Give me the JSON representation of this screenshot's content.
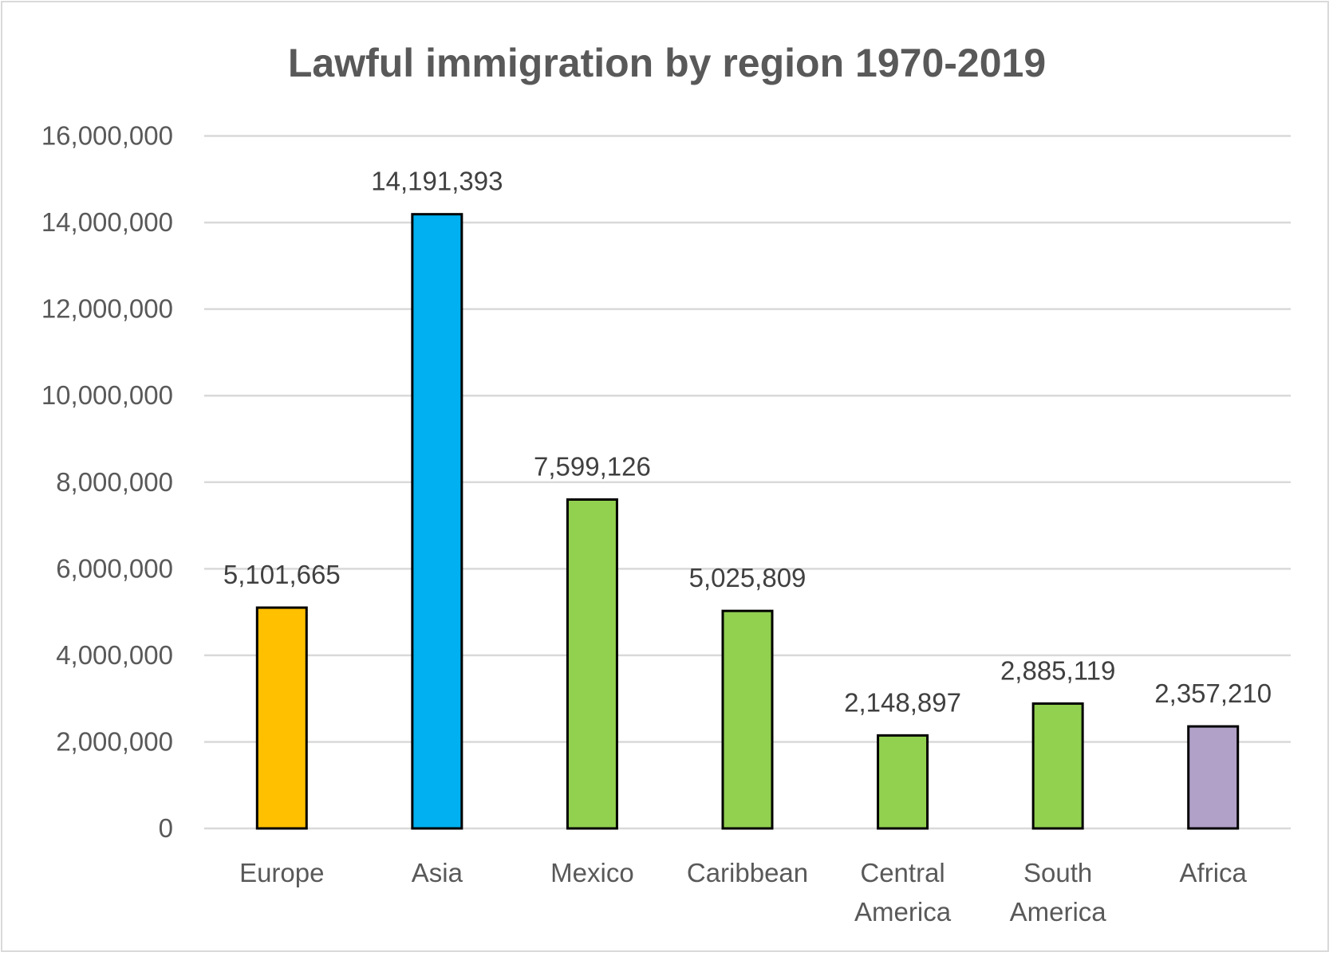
{
  "chart_data": {
    "type": "bar",
    "title": "Lawful immigration by region 1970-2019",
    "xlabel": "",
    "ylabel": "",
    "ylim": [
      0,
      16000000
    ],
    "yticks": [
      "0",
      "2,000,000",
      "4,000,000",
      "6,000,000",
      "8,000,000",
      "10,000,000",
      "12,000,000",
      "14,000,000",
      "16,000,000"
    ],
    "grid": true,
    "legend": "none",
    "categories": [
      [
        "Europe"
      ],
      [
        "Asia"
      ],
      [
        "Mexico"
      ],
      [
        "Caribbean"
      ],
      [
        "Central",
        "America"
      ],
      [
        "South",
        "America"
      ],
      [
        "Africa"
      ]
    ],
    "values": [
      5101665,
      14191393,
      7599126,
      5025809,
      2148897,
      2885119,
      2357210
    ],
    "data_labels": [
      "5,101,665",
      "14,191,393",
      "7,599,126",
      "5,025,809",
      "2,148,897",
      "2,885,119",
      "2,357,210"
    ],
    "colors": [
      "#FFC000",
      "#00B0F0",
      "#92D050",
      "#92D050",
      "#92D050",
      "#92D050",
      "#B1A0C7"
    ]
  }
}
